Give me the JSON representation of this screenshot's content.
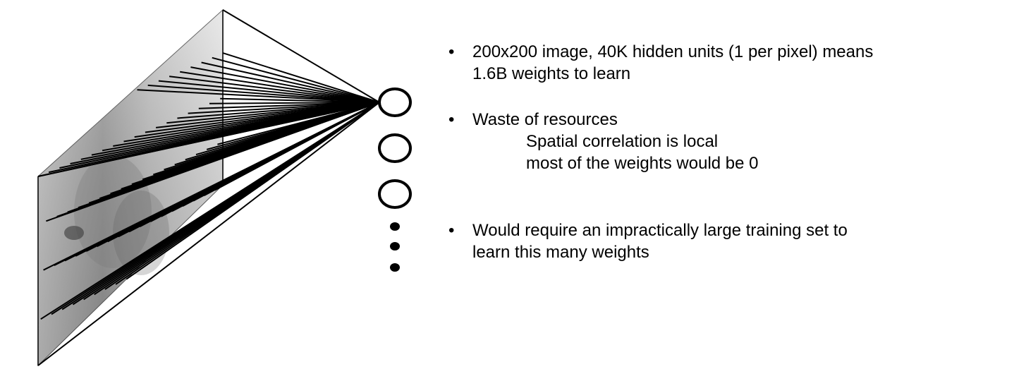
{
  "slide": {
    "bullets": [
      {
        "marker": "•",
        "lines": [
          "200x200 image, 40K hidden units (1 per pixel) means",
          "1.6B weights to learn"
        ]
      },
      {
        "marker": "•",
        "lines": [
          "Waste of resources"
        ],
        "sub_lines": [
          "Spatial correlation is local",
          "most of the weights would be 0"
        ]
      },
      {
        "marker": "•",
        "lines": [
          "Would require an impractically large training set to",
          "learn this many weights"
        ]
      }
    ]
  },
  "diagram": {
    "image_plane": "image-plane-face-photo",
    "hidden_units_shown": 3,
    "ellipsis_dots": 3,
    "colors": {
      "lines": "#000000",
      "plane_light": "#d6d6d6",
      "plane_dark": "#8c8c8c",
      "unit_fill": "#ffffff",
      "unit_stroke": "#000000"
    }
  }
}
